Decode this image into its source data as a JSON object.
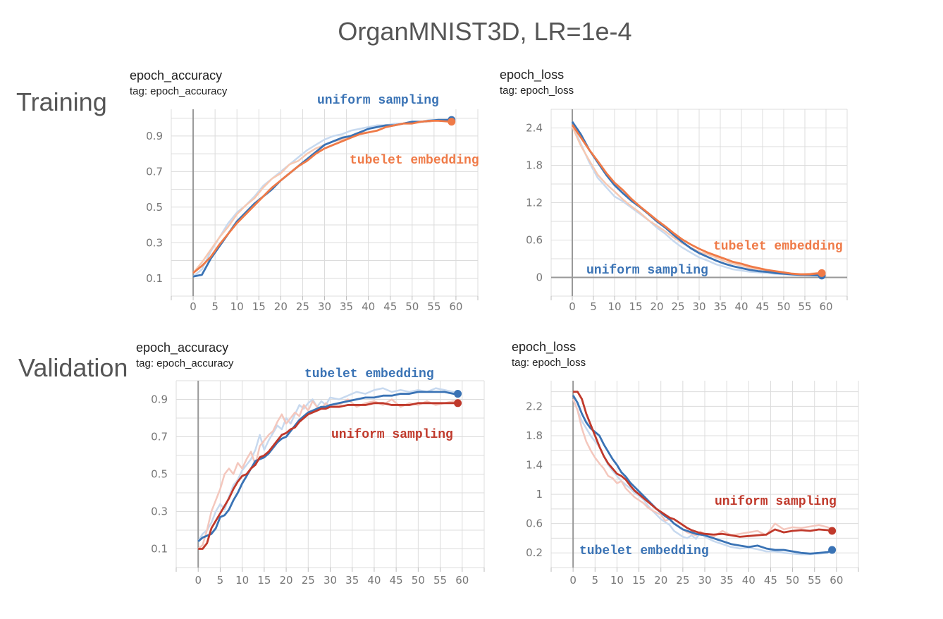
{
  "figure_title": "OrganMNIST3D, LR=1e-4",
  "row_labels": {
    "training": "Training",
    "validation": "Validation"
  },
  "colors": {
    "blue": "#3a73b5",
    "orange": "#ef7a47",
    "red": "#c0392b",
    "light_blue": "#c7d9ef",
    "light_red": "#f4c7bd"
  },
  "panels": {
    "train_acc": {
      "title": "epoch_accuracy",
      "tag": "tag: epoch_accuracy"
    },
    "train_loss": {
      "title": "epoch_loss",
      "tag": "tag: epoch_loss"
    },
    "val_acc": {
      "title": "epoch_accuracy",
      "tag": "tag: epoch_accuracy"
    },
    "val_loss": {
      "title": "epoch_loss",
      "tag": "tag: epoch_loss"
    }
  },
  "chart_data": [
    {
      "id": "train_acc",
      "type": "line",
      "title": "epoch_accuracy",
      "xlabel": "",
      "ylabel": "",
      "xlim": [
        -5,
        65
      ],
      "ylim": [
        0.0,
        1.05
      ],
      "xticks": [
        0,
        5,
        10,
        15,
        20,
        25,
        30,
        35,
        40,
        45,
        50,
        55,
        60
      ],
      "yticks": [
        0.1,
        0.3,
        0.5,
        0.7,
        0.9
      ],
      "grid": true,
      "x": [
        0,
        2,
        4,
        6,
        8,
        10,
        12,
        14,
        16,
        18,
        20,
        22,
        24,
        26,
        28,
        30,
        32,
        34,
        36,
        38,
        40,
        42,
        44,
        46,
        48,
        50,
        52,
        54,
        56,
        59
      ],
      "series": [
        {
          "name": "uniform sampling",
          "color": "#3a73b5",
          "values": [
            0.11,
            0.12,
            0.21,
            0.28,
            0.35,
            0.42,
            0.47,
            0.52,
            0.56,
            0.6,
            0.65,
            0.69,
            0.73,
            0.77,
            0.81,
            0.85,
            0.87,
            0.89,
            0.9,
            0.92,
            0.94,
            0.95,
            0.96,
            0.96,
            0.97,
            0.98,
            0.98,
            0.985,
            0.99,
            0.99
          ],
          "raw": [
            0.11,
            0.15,
            0.25,
            0.33,
            0.41,
            0.47,
            0.51,
            0.56,
            0.62,
            0.66,
            0.7,
            0.74,
            0.78,
            0.82,
            0.85,
            0.88,
            0.9,
            0.91,
            0.93,
            0.94,
            0.95,
            0.96,
            0.96,
            0.97,
            0.97,
            0.98,
            0.98,
            0.99,
            0.99,
            0.99
          ]
        },
        {
          "name": "tubelet embedding",
          "color": "#ef7a47",
          "values": [
            0.13,
            0.17,
            0.22,
            0.29,
            0.35,
            0.41,
            0.46,
            0.51,
            0.56,
            0.61,
            0.65,
            0.69,
            0.73,
            0.76,
            0.8,
            0.83,
            0.85,
            0.87,
            0.89,
            0.91,
            0.92,
            0.93,
            0.95,
            0.96,
            0.97,
            0.97,
            0.98,
            0.985,
            0.985,
            0.98
          ],
          "raw": [
            0.13,
            0.19,
            0.26,
            0.33,
            0.39,
            0.46,
            0.51,
            0.55,
            0.61,
            0.66,
            0.69,
            0.74,
            0.76,
            0.8,
            0.83,
            0.85,
            0.87,
            0.88,
            0.9,
            0.92,
            0.92,
            0.93,
            0.95,
            0.96,
            0.97,
            0.97,
            0.98,
            0.98,
            0.99,
            0.98
          ]
        }
      ],
      "annotations": [
        {
          "text": "uniform sampling",
          "series": 0
        },
        {
          "text": "tubelet embedding",
          "series": 1
        }
      ]
    },
    {
      "id": "train_loss",
      "type": "line",
      "title": "epoch_loss",
      "xlabel": "",
      "ylabel": "",
      "xlim": [
        -5,
        65
      ],
      "ylim": [
        -0.3,
        2.7
      ],
      "xticks": [
        0,
        5,
        10,
        15,
        20,
        25,
        30,
        35,
        40,
        45,
        50,
        55,
        60
      ],
      "yticks": [
        0,
        0.6,
        1.2,
        1.8,
        2.4
      ],
      "ytick_labels": [
        "0",
        "0.6",
        "1.2",
        "1.8",
        "2.4"
      ],
      "grid": true,
      "x": [
        0,
        2,
        4,
        6,
        8,
        10,
        12,
        14,
        16,
        18,
        20,
        22,
        24,
        26,
        28,
        30,
        32,
        34,
        36,
        38,
        40,
        42,
        44,
        46,
        48,
        50,
        52,
        54,
        56,
        59
      ],
      "series": [
        {
          "name": "uniform sampling",
          "color": "#3a73b5",
          "values": [
            2.5,
            2.3,
            2.05,
            1.85,
            1.65,
            1.48,
            1.35,
            1.23,
            1.13,
            1.02,
            0.9,
            0.8,
            0.68,
            0.57,
            0.47,
            0.39,
            0.33,
            0.27,
            0.22,
            0.18,
            0.15,
            0.12,
            0.1,
            0.09,
            0.07,
            0.06,
            0.05,
            0.04,
            0.04,
            0.03
          ],
          "raw": [
            2.45,
            2.15,
            1.85,
            1.6,
            1.45,
            1.3,
            1.22,
            1.12,
            1.02,
            0.92,
            0.8,
            0.7,
            0.58,
            0.48,
            0.4,
            0.32,
            0.27,
            0.21,
            0.17,
            0.13,
            0.11,
            0.09,
            0.08,
            0.07,
            0.06,
            0.05,
            0.04,
            0.04,
            0.03,
            0.03
          ]
        },
        {
          "name": "tubelet embedding",
          "color": "#ef7a47",
          "values": [
            2.45,
            2.25,
            2.05,
            1.87,
            1.68,
            1.52,
            1.4,
            1.26,
            1.14,
            1.03,
            0.92,
            0.82,
            0.71,
            0.61,
            0.53,
            0.46,
            0.4,
            0.35,
            0.3,
            0.25,
            0.22,
            0.18,
            0.15,
            0.12,
            0.1,
            0.08,
            0.06,
            0.05,
            0.05,
            0.07
          ],
          "raw": [
            2.42,
            2.12,
            1.88,
            1.65,
            1.5,
            1.38,
            1.25,
            1.14,
            1.04,
            0.92,
            0.83,
            0.74,
            0.64,
            0.55,
            0.48,
            0.41,
            0.37,
            0.32,
            0.26,
            0.22,
            0.19,
            0.15,
            0.13,
            0.11,
            0.09,
            0.07,
            0.05,
            0.05,
            0.06,
            0.08
          ]
        }
      ],
      "annotations": [
        {
          "text": "tubelet embedding",
          "series": 1
        },
        {
          "text": "uniform sampling",
          "series": 0
        }
      ]
    },
    {
      "id": "val_acc",
      "type": "line",
      "title": "epoch_accuracy",
      "xlabel": "",
      "ylabel": "",
      "xlim": [
        -5,
        65
      ],
      "ylim": [
        0.0,
        1.0
      ],
      "xticks": [
        0,
        5,
        10,
        15,
        20,
        25,
        30,
        35,
        40,
        45,
        50,
        55,
        60
      ],
      "yticks": [
        0.1,
        0.3,
        0.5,
        0.7,
        0.9
      ],
      "grid": true,
      "x": [
        0,
        1,
        2,
        3,
        4,
        5,
        6,
        7,
        8,
        9,
        10,
        11,
        12,
        13,
        14,
        15,
        16,
        17,
        18,
        19,
        20,
        21,
        22,
        23,
        24,
        25,
        26,
        27,
        28,
        29,
        30,
        32,
        34,
        36,
        38,
        40,
        42,
        44,
        46,
        48,
        50,
        52,
        54,
        56,
        58,
        59
      ],
      "series": [
        {
          "name": "tubelet embedding",
          "color": "#3a73b5",
          "values": [
            0.14,
            0.16,
            0.17,
            0.18,
            0.21,
            0.27,
            0.28,
            0.31,
            0.36,
            0.4,
            0.45,
            0.49,
            0.53,
            0.57,
            0.58,
            0.59,
            0.61,
            0.64,
            0.67,
            0.69,
            0.7,
            0.73,
            0.76,
            0.79,
            0.81,
            0.83,
            0.84,
            0.85,
            0.86,
            0.86,
            0.87,
            0.88,
            0.89,
            0.9,
            0.91,
            0.91,
            0.92,
            0.92,
            0.93,
            0.93,
            0.94,
            0.94,
            0.94,
            0.94,
            0.93,
            0.93
          ],
          "raw": [
            0.14,
            0.18,
            0.2,
            0.24,
            0.3,
            0.34,
            0.31,
            0.38,
            0.44,
            0.47,
            0.52,
            0.55,
            0.58,
            0.63,
            0.71,
            0.63,
            0.68,
            0.72,
            0.76,
            0.74,
            0.8,
            0.77,
            0.82,
            0.87,
            0.85,
            0.88,
            0.9,
            0.86,
            0.89,
            0.87,
            0.91,
            0.9,
            0.92,
            0.94,
            0.93,
            0.95,
            0.96,
            0.94,
            0.95,
            0.94,
            0.95,
            0.94,
            0.96,
            0.95,
            0.94,
            0.93
          ]
        },
        {
          "name": "uniform sampling",
          "color": "#c0392b",
          "values": [
            0.1,
            0.1,
            0.13,
            0.21,
            0.25,
            0.29,
            0.33,
            0.37,
            0.42,
            0.46,
            0.49,
            0.5,
            0.53,
            0.55,
            0.59,
            0.6,
            0.62,
            0.65,
            0.68,
            0.71,
            0.72,
            0.74,
            0.75,
            0.78,
            0.8,
            0.82,
            0.83,
            0.84,
            0.85,
            0.85,
            0.86,
            0.86,
            0.87,
            0.87,
            0.87,
            0.88,
            0.88,
            0.87,
            0.87,
            0.87,
            0.88,
            0.88,
            0.88,
            0.88,
            0.88,
            0.88
          ],
          "raw": [
            0.1,
            0.12,
            0.2,
            0.3,
            0.36,
            0.42,
            0.5,
            0.53,
            0.5,
            0.56,
            0.53,
            0.58,
            0.62,
            0.55,
            0.65,
            0.68,
            0.71,
            0.73,
            0.78,
            0.82,
            0.77,
            0.8,
            0.83,
            0.81,
            0.87,
            0.84,
            0.89,
            0.86,
            0.85,
            0.88,
            0.86,
            0.87,
            0.9,
            0.86,
            0.88,
            0.89,
            0.87,
            0.9,
            0.86,
            0.88,
            0.87,
            0.89,
            0.87,
            0.88,
            0.89,
            0.88
          ]
        }
      ],
      "annotations": [
        {
          "text": "tubelet embedding",
          "series": 0
        },
        {
          "text": "uniform sampling",
          "series": 1
        }
      ]
    },
    {
      "id": "val_loss",
      "type": "line",
      "title": "epoch_loss",
      "xlabel": "",
      "ylabel": "",
      "xlim": [
        -5,
        65
      ],
      "ylim": [
        0.0,
        2.55
      ],
      "xticks": [
        0,
        5,
        10,
        15,
        20,
        25,
        30,
        35,
        40,
        45,
        50,
        55,
        60
      ],
      "yticks": [
        0.2,
        0.6,
        1.0,
        1.4,
        1.8,
        2.2
      ],
      "ytick_labels": [
        "0.2",
        "0.6",
        "1",
        "1.4",
        "1.8",
        "2.2"
      ],
      "grid": true,
      "x": [
        0,
        1,
        2,
        3,
        4,
        5,
        6,
        7,
        8,
        9,
        10,
        11,
        12,
        13,
        14,
        15,
        16,
        17,
        18,
        19,
        20,
        21,
        22,
        23,
        24,
        25,
        26,
        27,
        28,
        29,
        30,
        32,
        34,
        36,
        38,
        40,
        42,
        44,
        46,
        48,
        50,
        52,
        54,
        56,
        58,
        59
      ],
      "series": [
        {
          "name": "tubelet embedding",
          "color": "#3a73b5",
          "values": [
            2.35,
            2.25,
            2.1,
            1.98,
            1.9,
            1.85,
            1.8,
            1.68,
            1.58,
            1.48,
            1.4,
            1.3,
            1.24,
            1.16,
            1.1,
            1.04,
            0.98,
            0.92,
            0.86,
            0.8,
            0.75,
            0.7,
            0.66,
            0.6,
            0.56,
            0.52,
            0.5,
            0.48,
            0.46,
            0.45,
            0.44,
            0.4,
            0.36,
            0.32,
            0.3,
            0.28,
            0.3,
            0.26,
            0.24,
            0.24,
            0.22,
            0.2,
            0.19,
            0.2,
            0.21,
            0.24
          ],
          "raw": [
            2.3,
            2.15,
            2.0,
            1.9,
            1.8,
            1.72,
            1.65,
            1.52,
            1.4,
            1.32,
            1.25,
            1.18,
            1.13,
            1.08,
            1.02,
            0.98,
            0.93,
            0.85,
            0.78,
            0.72,
            0.66,
            0.62,
            0.58,
            0.5,
            0.46,
            0.42,
            0.4,
            0.44,
            0.39,
            0.48,
            0.42,
            0.36,
            0.32,
            0.28,
            0.26,
            0.27,
            0.25,
            0.22,
            0.22,
            0.2,
            0.19,
            0.18,
            0.18,
            0.19,
            0.2,
            0.24
          ]
        },
        {
          "name": "uniform sampling",
          "color": "#c0392b",
          "values": [
            2.4,
            2.4,
            2.3,
            2.1,
            1.95,
            1.8,
            1.65,
            1.52,
            1.42,
            1.35,
            1.28,
            1.25,
            1.2,
            1.12,
            1.05,
            1.0,
            0.95,
            0.9,
            0.85,
            0.8,
            0.76,
            0.72,
            0.68,
            0.66,
            0.62,
            0.58,
            0.54,
            0.51,
            0.49,
            0.47,
            0.46,
            0.45,
            0.46,
            0.44,
            0.42,
            0.43,
            0.44,
            0.45,
            0.52,
            0.48,
            0.5,
            0.51,
            0.5,
            0.52,
            0.51,
            0.5
          ],
          "raw": [
            2.3,
            2.15,
            1.9,
            1.72,
            1.6,
            1.5,
            1.42,
            1.35,
            1.25,
            1.22,
            1.15,
            1.18,
            1.08,
            1.02,
            0.96,
            0.92,
            0.88,
            0.82,
            0.78,
            0.75,
            0.72,
            0.64,
            0.66,
            0.6,
            0.56,
            0.52,
            0.48,
            0.46,
            0.44,
            0.49,
            0.46,
            0.42,
            0.5,
            0.44,
            0.46,
            0.48,
            0.5,
            0.44,
            0.6,
            0.52,
            0.55,
            0.54,
            0.56,
            0.58,
            0.55,
            0.52
          ]
        }
      ],
      "annotations": [
        {
          "text": "uniform sampling",
          "series": 1
        },
        {
          "text": "tubelet embedding",
          "series": 0
        }
      ]
    }
  ]
}
